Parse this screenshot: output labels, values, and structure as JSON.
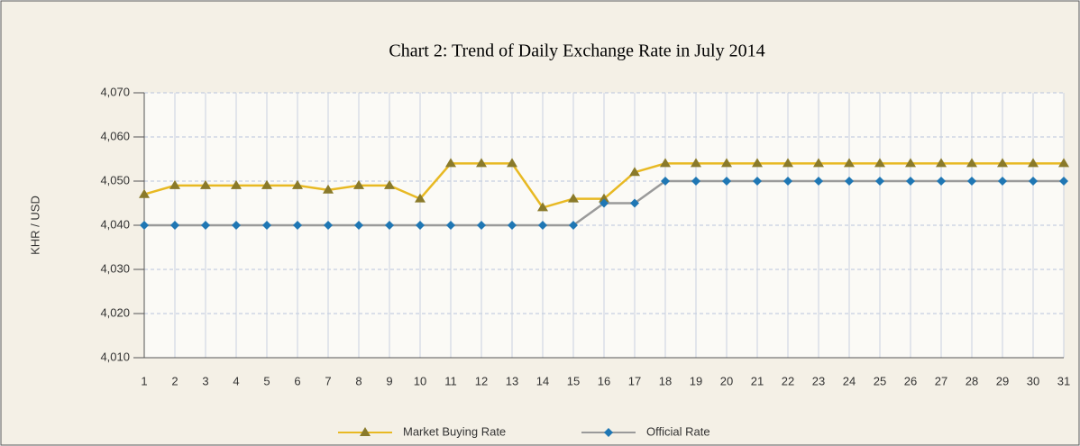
{
  "chart_data": {
    "type": "line",
    "title": "Chart 2: Trend of Daily Exchange Rate in July 2014",
    "y_label": "KHR / USD",
    "categories": [
      "1",
      "2",
      "3",
      "4",
      "5",
      "6",
      "7",
      "8",
      "9",
      "10",
      "11",
      "12",
      "13",
      "14",
      "15",
      "16",
      "17",
      "18",
      "19",
      "20",
      "21",
      "22",
      "23",
      "24",
      "25",
      "26",
      "27",
      "28",
      "29",
      "30",
      "31"
    ],
    "series": [
      {
        "name": "Market Buying Rate",
        "color": "#e8b923",
        "marker_color": "#8a7a2a",
        "marker": "triangle",
        "values": [
          4047,
          4049,
          4049,
          4049,
          4049,
          4049,
          4048,
          4049,
          4049,
          4046,
          4054,
          4054,
          4054,
          4044,
          4046,
          4046,
          4052,
          4054,
          4054,
          4054,
          4054,
          4054,
          4054,
          4054,
          4054,
          4054,
          4054,
          4054,
          4054,
          4054,
          4054
        ]
      },
      {
        "name": "Official Rate",
        "color": "#9a9a9a",
        "marker_color": "#1f77b4",
        "marker": "diamond",
        "values": [
          4040,
          4040,
          4040,
          4040,
          4040,
          4040,
          4040,
          4040,
          4040,
          4040,
          4040,
          4040,
          4040,
          4040,
          4040,
          4045,
          4045,
          4050,
          4050,
          4050,
          4050,
          4050,
          4050,
          4050,
          4050,
          4050,
          4050,
          4050,
          4050,
          4050,
          4050
        ]
      }
    ],
    "ylim": [
      4010,
      4070
    ],
    "yticks": [
      {
        "value": 4010,
        "label": "4,010"
      },
      {
        "value": 4020,
        "label": "4,020"
      },
      {
        "value": 4030,
        "label": "4,030"
      },
      {
        "value": 4040,
        "label": "4,040"
      },
      {
        "value": 4050,
        "label": "4,050"
      },
      {
        "value": 4060,
        "label": "4,060"
      },
      {
        "value": 4070,
        "label": "4,070"
      }
    ],
    "grid": true,
    "legend": "bottom"
  }
}
